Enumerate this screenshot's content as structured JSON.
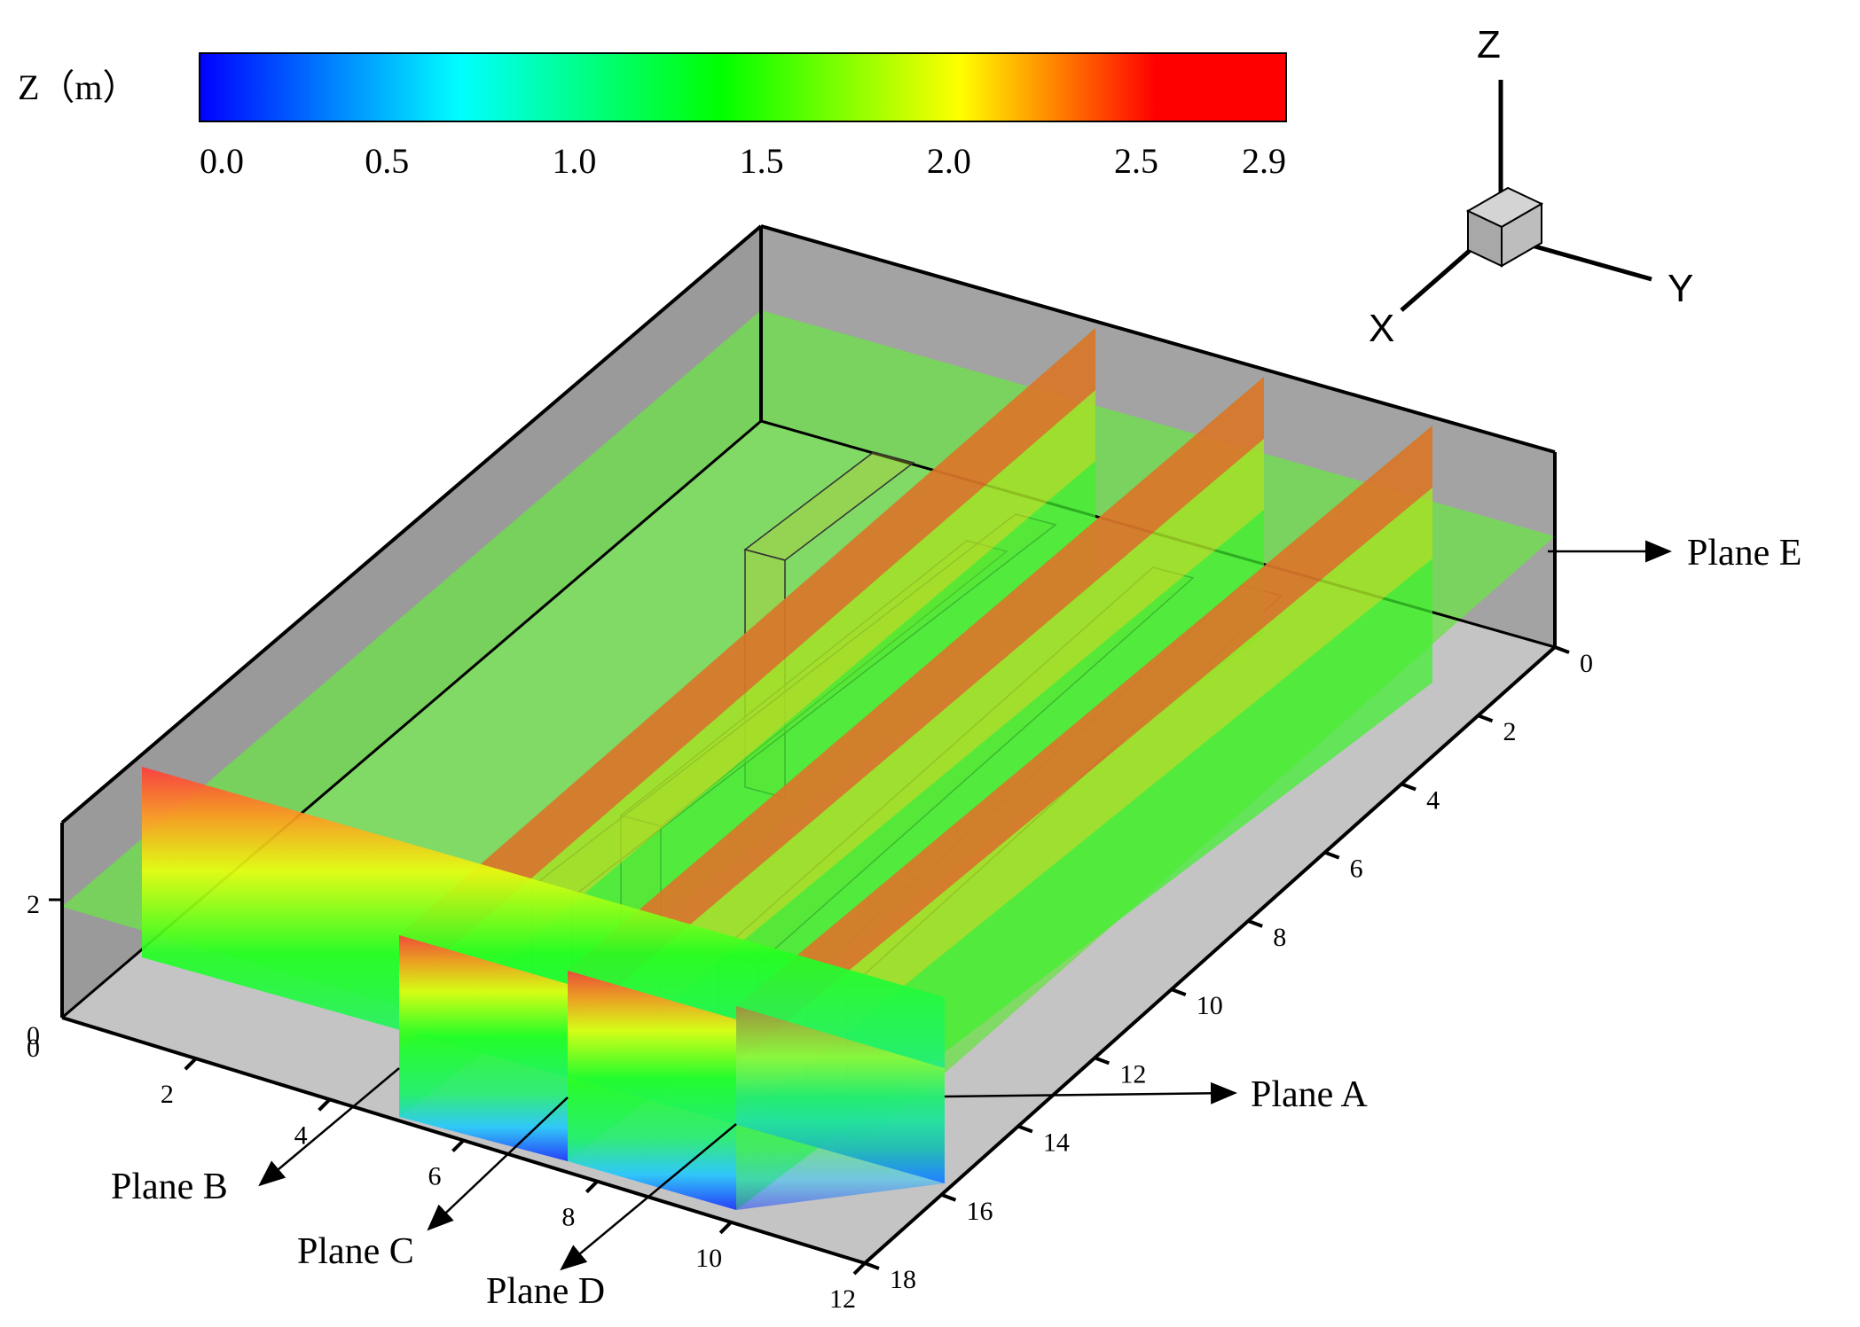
{
  "colorbar": {
    "title": "Z（m）",
    "ticks": [
      "0.0",
      "0.5",
      "1.0",
      "1.5",
      "2.0",
      "2.5",
      "2.9"
    ],
    "tick_values": [
      0.0,
      0.5,
      1.0,
      1.5,
      2.0,
      2.5,
      2.9
    ],
    "range": [
      0.0,
      2.9
    ],
    "colors": [
      "#0000ff",
      "#00ffff",
      "#00ff00",
      "#ffff00",
      "#ff0000"
    ]
  },
  "axes_triad": {
    "x_label": "X",
    "y_label": "Y",
    "z_label": "Z",
    "cube_color": "#b3b3b3"
  },
  "axes": {
    "x_ticks": [
      "2",
      "4",
      "6",
      "8",
      "10",
      "12"
    ],
    "x_range": [
      0,
      12
    ],
    "y_ticks": [
      "0",
      "2",
      "4",
      "6",
      "8",
      "10",
      "12",
      "14",
      "16",
      "18"
    ],
    "y_range": [
      0,
      18
    ],
    "z_ticks": [
      "0",
      "2"
    ],
    "z_origin_label": "0"
  },
  "planes": {
    "a": "Plane A",
    "b": "Plane B",
    "c": "Plane C",
    "d": "Plane D",
    "e": "Plane E"
  },
  "colors": {
    "wall_gray": "#9e9e9e",
    "floor_gray": "#c4c4c4",
    "plane_e_green": "#7fe060",
    "box_line": "#000000"
  }
}
